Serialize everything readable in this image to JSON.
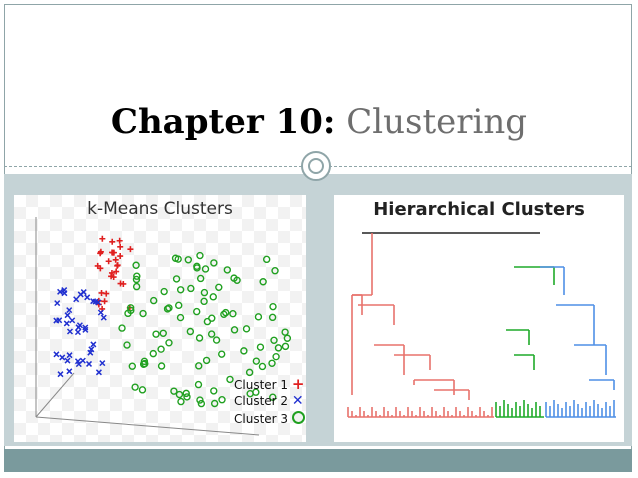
{
  "slide": {
    "title_bold": "Chapter 10:",
    "title_light": "Clustering"
  },
  "kmeans": {
    "title": "k-Means Clusters",
    "legend": [
      {
        "label": "Cluster 1",
        "color": "#e02020",
        "marker": "plus"
      },
      {
        "label": "Cluster 2",
        "color": "#2030d0",
        "marker": "cross"
      },
      {
        "label": "Cluster 3",
        "color": "#20a020",
        "marker": "circle"
      }
    ]
  },
  "hier": {
    "title": "Hierarchical Clusters",
    "colors": {
      "red": "#e8726c",
      "green": "#1faa2a",
      "blue": "#4f8fe6",
      "root": "#222222"
    }
  },
  "colors": {
    "band": "#c5d3d6",
    "footer": "#7a9a9d"
  }
}
